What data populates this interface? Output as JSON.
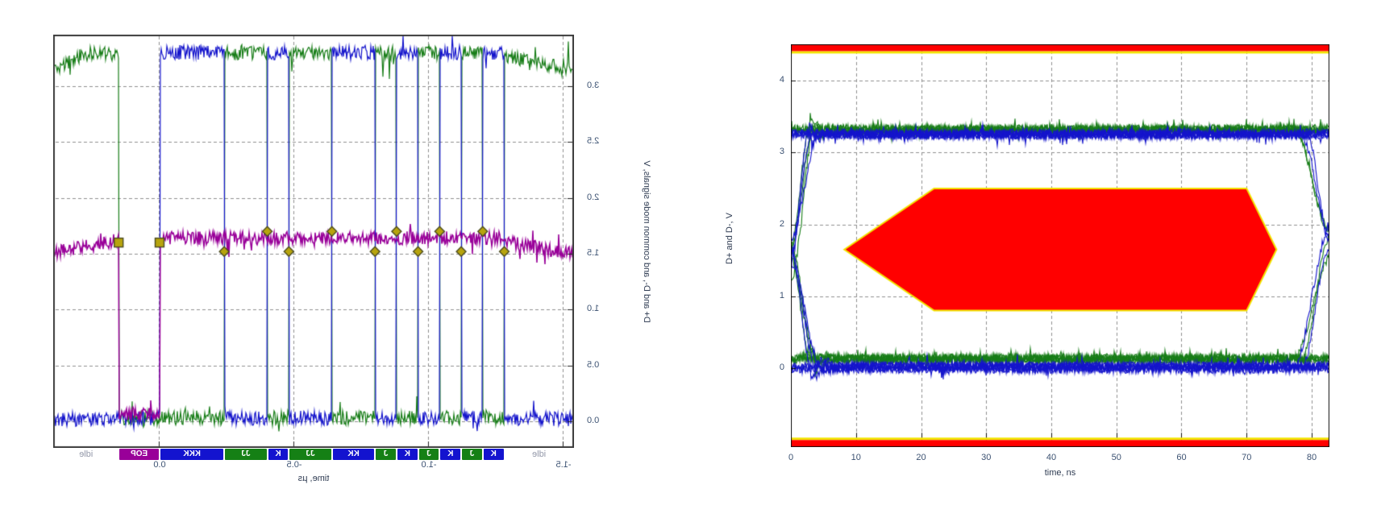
{
  "page": {
    "background": "#ffffff"
  },
  "chart_data": [
    {
      "type": "line",
      "name": "usb-packet-waveform",
      "mirrored_horizontally": true,
      "xlabel": "time, µs",
      "ylabel": "D+ and D-, and common mode signals, V",
      "xlim": [
        -1.538,
        0.395
      ],
      "ylim": [
        -0.238,
        3.46
      ],
      "x_ticks": [
        {
          "v": 0.0,
          "label": "0.0"
        },
        {
          "v": -0.5,
          "label": "-0.5"
        },
        {
          "v": -1.0,
          "label": "-1.0"
        },
        {
          "v": -1.5,
          "label": "-1.5"
        }
      ],
      "y_ticks": [
        {
          "v": 3.0,
          "label": "3.0"
        },
        {
          "v": 2.5,
          "label": "2.5"
        },
        {
          "v": 2.0,
          "label": "2.0"
        },
        {
          "v": 1.5,
          "label": "1.5"
        },
        {
          "v": 1.0,
          "label": "1.0"
        },
        {
          "v": 0.5,
          "label": "0.5"
        },
        {
          "v": 0.0,
          "label": "0.0"
        }
      ],
      "grid": "dashed",
      "series": [
        {
          "name": "D+",
          "color": "#177d17"
        },
        {
          "name": "D-",
          "color": "#1414cc"
        },
        {
          "name": "common mode",
          "color": "#990099"
        }
      ],
      "levels": {
        "high": 3.3,
        "low": 0.03,
        "common_mode": 1.64,
        "se0_common": 0.07,
        "idle_pre_start": 3.16,
        "idle_pre_end": 3.26
      },
      "badges": [
        {
          "label": "idle",
          "state": "idle",
          "t0": -1.538,
          "t1": -1.28
        },
        {
          "label": "K",
          "state": "K",
          "t0": -1.28,
          "t1": -1.2
        },
        {
          "label": "J",
          "state": "J",
          "t0": -1.2,
          "t1": -1.12
        },
        {
          "label": "K",
          "state": "K",
          "t0": -1.12,
          "t1": -1.04
        },
        {
          "label": "J",
          "state": "J",
          "t0": -1.04,
          "t1": -0.96
        },
        {
          "label": "K",
          "state": "K",
          "t0": -0.96,
          "t1": -0.88
        },
        {
          "label": "J",
          "state": "J",
          "t0": -0.88,
          "t1": -0.8
        },
        {
          "label": "KK",
          "state": "K",
          "t0": -0.8,
          "t1": -0.64
        },
        {
          "label": "JJ",
          "state": "J",
          "t0": -0.64,
          "t1": -0.48
        },
        {
          "label": "K",
          "state": "K",
          "t0": -0.48,
          "t1": -0.4
        },
        {
          "label": "JJ",
          "state": "J",
          "t0": -0.4,
          "t1": -0.24
        },
        {
          "label": "KKK",
          "state": "K",
          "t0": -0.24,
          "t1": 0.0
        },
        {
          "label": "EOP",
          "state": "SE0",
          "t0": 0.0,
          "t1": 0.152
        },
        {
          "label": "idle",
          "state": "idle",
          "t0": 0.152,
          "t1": 0.395
        }
      ],
      "markers": {
        "square_color": "#b7a40e",
        "marker_edge": "#4c4c22",
        "squares": [
          [
            0.0,
            1.6
          ],
          [
            0.152,
            1.6
          ]
        ],
        "diamonds": [
          [
            -1.28,
            1.52
          ],
          [
            -1.2,
            1.7
          ],
          [
            -1.12,
            1.52
          ],
          [
            -1.04,
            1.7
          ],
          [
            -0.96,
            1.52
          ],
          [
            -0.88,
            1.7
          ],
          [
            -0.8,
            1.52
          ],
          [
            -0.64,
            1.7
          ],
          [
            -0.48,
            1.52
          ],
          [
            -0.4,
            1.7
          ],
          [
            -0.24,
            1.52
          ]
        ]
      }
    },
    {
      "type": "line",
      "name": "usb-eye-diagram",
      "xlabel": "time, ns",
      "ylabel": "D+ and D-, V",
      "xlim": [
        0,
        82.7
      ],
      "ylim": [
        -1.1,
        4.5
      ],
      "x_ticks": [
        {
          "v": 0,
          "label": "0"
        },
        {
          "v": 10,
          "label": "10"
        },
        {
          "v": 20,
          "label": "20"
        },
        {
          "v": 30,
          "label": "30"
        },
        {
          "v": 40,
          "label": "40"
        },
        {
          "v": 50,
          "label": "50"
        },
        {
          "v": 60,
          "label": "60"
        },
        {
          "v": 70,
          "label": "70"
        },
        {
          "v": 80,
          "label": "80"
        }
      ],
      "y_ticks": [
        {
          "v": 4,
          "label": "4"
        },
        {
          "v": 3,
          "label": "3"
        },
        {
          "v": 2,
          "label": "2"
        },
        {
          "v": 1,
          "label": "1"
        },
        {
          "v": 0,
          "label": "0"
        }
      ],
      "grid": "dashed",
      "series": [
        {
          "name": "D+",
          "color": "#177d17"
        },
        {
          "name": "D-",
          "color": "#1414cc"
        }
      ],
      "rails": {
        "high_green": 3.31,
        "high_blue": 3.26,
        "low_green": 0.12,
        "low_blue": 0.01
      },
      "mask": {
        "fill": "#ff0000",
        "edge": "#f2e400",
        "polygon": [
          [
            8.2,
            1.65
          ],
          [
            22,
            2.5
          ],
          [
            70,
            2.5
          ],
          [
            74.6,
            1.65
          ],
          [
            70,
            0.8
          ],
          [
            22,
            0.8
          ]
        ]
      },
      "limit_bars": {
        "fill": "#ff0000",
        "edge": "#f2e400",
        "top": [
          4.41,
          4.5
        ],
        "bottom": [
          -1.1,
          -1.0
        ]
      },
      "traces_per_color": 12
    }
  ]
}
